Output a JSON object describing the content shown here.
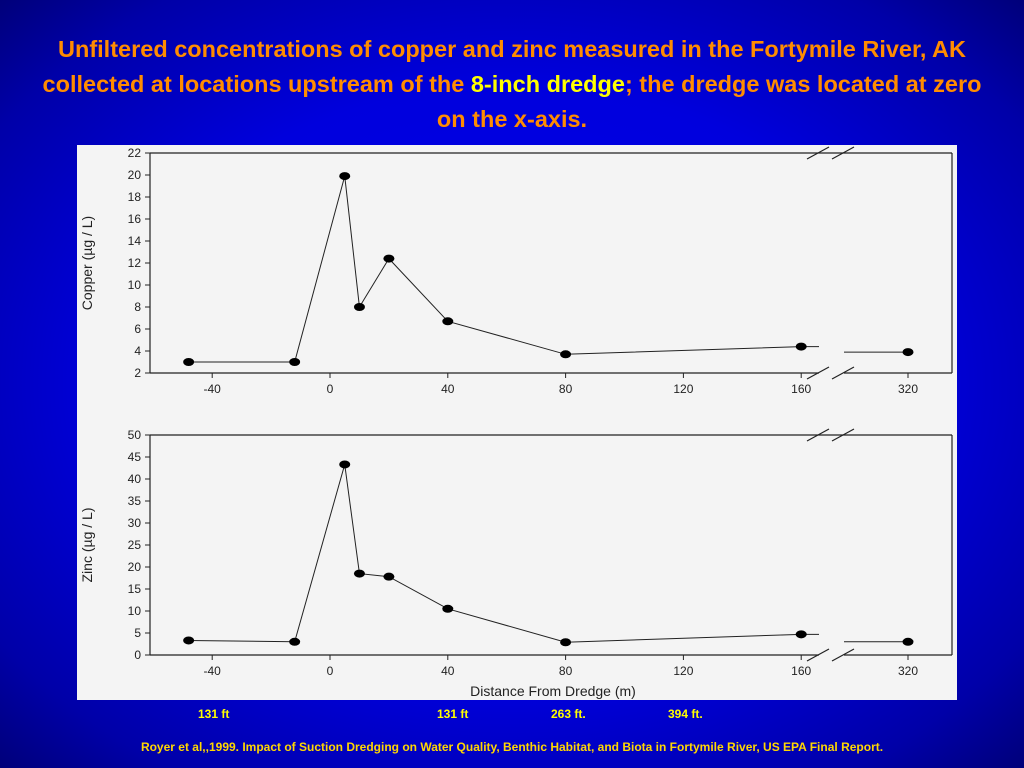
{
  "title": {
    "part1": "Unfiltered concentrations of copper and zinc measured in the Fortymile River, AK collected at locations upstream of the",
    "highlight1": "8-inch dredge",
    "part2": "; the dredge was located at zero on the x-axis."
  },
  "distance_labels": [
    "131 ft",
    "131 ft",
    "263 ft.",
    "394 ft."
  ],
  "citation": "Royer et al,,1999.  Impact of Suction Dredging on Water Quality, Benthic Habitat, and Biota in Fortymile River, US EPA Final Report.",
  "chart_data": [
    {
      "type": "line",
      "title": "",
      "xlabel": "",
      "ylabel": "Copper (µg / L)",
      "xticks": [
        -40,
        0,
        40,
        80,
        120,
        160,
        320
      ],
      "xlim": [
        -48,
        320
      ],
      "x_axis_break": "between 160 and 320",
      "ylim": [
        2,
        22
      ],
      "yticks": [
        2,
        4,
        6,
        8,
        10,
        12,
        14,
        16,
        18,
        20,
        22
      ],
      "grid": false,
      "series": [
        {
          "x": [
            -48,
            -12,
            5,
            10,
            20,
            40,
            80,
            160,
            320
          ],
          "y": [
            3.0,
            3.0,
            19.9,
            8.0,
            12.4,
            6.7,
            3.7,
            4.4,
            3.9
          ]
        }
      ]
    },
    {
      "type": "line",
      "title": "",
      "xlabel": "Distance From Dredge (m)",
      "ylabel": "Zinc (µg / L)",
      "xticks": [
        -40,
        0,
        40,
        80,
        120,
        160,
        320
      ],
      "xlim": [
        -48,
        320
      ],
      "x_axis_break": "between 160 and 320",
      "ylim": [
        0,
        50
      ],
      "yticks": [
        0,
        5,
        10,
        15,
        20,
        25,
        30,
        35,
        40,
        45,
        50
      ],
      "grid": false,
      "series": [
        {
          "x": [
            -48,
            -12,
            5,
            10,
            20,
            40,
            80,
            160,
            320
          ],
          "y": [
            3.3,
            3.0,
            43.3,
            18.5,
            17.8,
            10.5,
            2.9,
            4.7,
            3.0
          ]
        }
      ]
    }
  ]
}
